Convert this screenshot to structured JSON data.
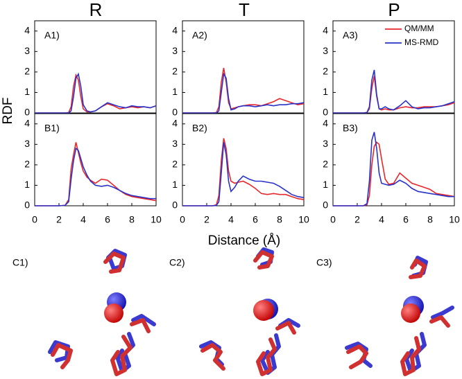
{
  "figure": {
    "column_titles": [
      "R",
      "T",
      "P"
    ],
    "y_label": "RDF",
    "x_label": "Distance (Å)",
    "image_labels": [
      "C1)",
      "C2)",
      "C3)"
    ]
  },
  "chart_data": [
    {
      "type": "line",
      "label": "A1)",
      "x": [
        0,
        1,
        2,
        2.5,
        2.8,
        3,
        3.2,
        3.4,
        3.6,
        3.8,
        4,
        4.3,
        4.6,
        5,
        5.5,
        6,
        6.5,
        7,
        7.5,
        8,
        8.5,
        9,
        9.5,
        10
      ],
      "xlim": [
        0,
        10
      ],
      "ylim": [
        0,
        4.5
      ],
      "yticks": [
        0,
        1,
        2,
        3,
        4
      ],
      "series": [
        {
          "color": "#e8262a",
          "values": [
            0,
            0,
            0,
            0,
            0.02,
            0.3,
            1.3,
            1.85,
            1.6,
            0.8,
            0.2,
            0.05,
            0.05,
            0.1,
            0.3,
            0.45,
            0.35,
            0.2,
            0.25,
            0.3,
            0.25,
            0.3,
            0.25,
            0.35
          ]
        },
        {
          "color": "#2832c8",
          "values": [
            0,
            0,
            0,
            0,
            0,
            0.1,
            0.8,
            1.7,
            1.9,
            1.3,
            0.4,
            0.1,
            0.05,
            0.1,
            0.3,
            0.5,
            0.4,
            0.3,
            0.25,
            0.35,
            0.3,
            0.3,
            0.25,
            0.35
          ]
        }
      ]
    },
    {
      "type": "line",
      "label": "A2)",
      "x": [
        0,
        1,
        2,
        2.5,
        2.8,
        3,
        3.2,
        3.4,
        3.6,
        3.8,
        4,
        4.3,
        4.6,
        5,
        5.5,
        6,
        6.5,
        7,
        7.5,
        8,
        8.5,
        9,
        9.5,
        10
      ],
      "xlim": [
        0,
        10
      ],
      "ylim": [
        0,
        4.5
      ],
      "yticks": [
        0,
        1,
        2,
        3,
        4
      ],
      "series": [
        {
          "color": "#e8262a",
          "values": [
            0,
            0,
            0,
            0,
            0.02,
            0.3,
            1.5,
            2.2,
            1.5,
            0.5,
            0.2,
            0.25,
            0.3,
            0.35,
            0.4,
            0.4,
            0.35,
            0.45,
            0.55,
            0.7,
            0.6,
            0.5,
            0.4,
            0.45
          ]
        },
        {
          "color": "#2832c8",
          "values": [
            0,
            0,
            0,
            0,
            0,
            0.1,
            1.0,
            1.9,
            1.7,
            0.7,
            0.15,
            0.2,
            0.3,
            0.35,
            0.35,
            0.3,
            0.35,
            0.4,
            0.35,
            0.4,
            0.4,
            0.45,
            0.45,
            0.5
          ]
        }
      ]
    },
    {
      "type": "line",
      "label": "A3)",
      "legend": "upper right",
      "x": [
        0,
        1,
        2,
        2.5,
        2.8,
        3,
        3.2,
        3.4,
        3.6,
        3.8,
        4,
        4.3,
        4.6,
        5,
        5.5,
        6,
        6.5,
        7,
        7.5,
        8,
        8.5,
        9,
        9.5,
        10
      ],
      "xlim": [
        0,
        10
      ],
      "ylim": [
        0,
        4.5
      ],
      "yticks": [
        0,
        1,
        2,
        3,
        4
      ],
      "series": [
        {
          "name": "QM/MM",
          "color": "#e8262a",
          "values": [
            0,
            0,
            0,
            0,
            0.02,
            0.2,
            1.2,
            1.8,
            0.8,
            0.2,
            0.15,
            0.2,
            0.15,
            0.15,
            0.25,
            0.3,
            0.25,
            0.25,
            0.3,
            0.3,
            0.3,
            0.35,
            0.4,
            0.5
          ]
        },
        {
          "name": "MS-RMD",
          "color": "#2832c8",
          "values": [
            0,
            0,
            0,
            0,
            0.02,
            0.3,
            1.6,
            2.1,
            0.9,
            0.2,
            0.2,
            0.3,
            0.2,
            0.15,
            0.35,
            0.6,
            0.3,
            0.2,
            0.25,
            0.25,
            0.3,
            0.35,
            0.45,
            0.55
          ]
        }
      ]
    },
    {
      "type": "line",
      "label": "B1)",
      "x": [
        0,
        1,
        2,
        2.5,
        2.8,
        3,
        3.2,
        3.4,
        3.6,
        3.8,
        4,
        4.3,
        4.6,
        5,
        5.5,
        6,
        6.5,
        7,
        7.5,
        8,
        8.5,
        9,
        9.5,
        10
      ],
      "xlim": [
        0,
        10
      ],
      "ylim": [
        0,
        4.5
      ],
      "yticks": [
        0,
        1,
        2,
        3,
        4
      ],
      "xticks": [
        0,
        2,
        4,
        6,
        8,
        10
      ],
      "series": [
        {
          "color": "#e8262a",
          "values": [
            0,
            0,
            0,
            0.02,
            0.3,
            1.8,
            2.5,
            3.1,
            2.6,
            2.1,
            1.7,
            1.4,
            1.25,
            1.1,
            1.3,
            1.25,
            1.0,
            0.75,
            0.55,
            0.45,
            0.4,
            0.35,
            0.3,
            0.25
          ]
        },
        {
          "color": "#2832c8",
          "values": [
            0,
            0,
            0,
            0.02,
            0.2,
            1.3,
            2.2,
            2.8,
            2.7,
            2.3,
            1.9,
            1.5,
            1.2,
            1.0,
            0.95,
            1.0,
            0.9,
            0.75,
            0.6,
            0.5,
            0.45,
            0.4,
            0.35,
            0.35
          ]
        }
      ]
    },
    {
      "type": "line",
      "label": "B2)",
      "x": [
        0,
        1,
        2,
        2.5,
        2.8,
        3,
        3.2,
        3.4,
        3.6,
        3.8,
        4,
        4.3,
        4.6,
        5,
        5.5,
        6,
        6.5,
        7,
        7.5,
        8,
        8.5,
        9,
        9.5,
        10
      ],
      "xlim": [
        0,
        10
      ],
      "ylim": [
        0,
        4.5
      ],
      "yticks": [
        0,
        1,
        2,
        3,
        4
      ],
      "xticks": [
        0,
        2,
        4,
        6,
        8,
        10
      ],
      "series": [
        {
          "color": "#e8262a",
          "values": [
            0,
            0,
            0,
            0,
            0.05,
            0.5,
            2.2,
            3.3,
            2.8,
            1.7,
            1.2,
            1.1,
            1.15,
            1.2,
            1.05,
            0.85,
            0.6,
            0.55,
            0.6,
            0.55,
            0.55,
            0.45,
            0.35,
            0.3
          ]
        },
        {
          "color": "#2832c8",
          "values": [
            0,
            0,
            0,
            0,
            0.02,
            0.2,
            1.6,
            3.1,
            2.5,
            1.2,
            0.7,
            0.9,
            1.2,
            1.45,
            1.3,
            1.2,
            1.2,
            1.15,
            1.1,
            0.95,
            0.75,
            0.55,
            0.45,
            0.4
          ]
        }
      ]
    },
    {
      "type": "line",
      "label": "B3)",
      "x": [
        0,
        1,
        2,
        2.5,
        2.8,
        3,
        3.2,
        3.4,
        3.6,
        3.8,
        4,
        4.3,
        4.6,
        5,
        5.5,
        6,
        6.5,
        7,
        7.5,
        8,
        8.5,
        9,
        9.5,
        10
      ],
      "xlim": [
        0,
        10
      ],
      "ylim": [
        0,
        4.5
      ],
      "yticks": [
        0,
        1,
        2,
        3,
        4
      ],
      "xticks": [
        0,
        2,
        4,
        6,
        8,
        10
      ],
      "series": [
        {
          "color": "#e8262a",
          "values": [
            0,
            0,
            0,
            0,
            0.05,
            0.5,
            2.0,
            2.9,
            3.1,
            3.0,
            2.3,
            1.3,
            1.05,
            1.1,
            1.6,
            1.35,
            1.1,
            1.0,
            0.9,
            0.8,
            0.6,
            0.55,
            0.5,
            0.45
          ]
        },
        {
          "color": "#2832c8",
          "values": [
            0,
            0,
            0,
            0,
            0.1,
            1.2,
            3.2,
            3.6,
            2.8,
            1.6,
            1.1,
            1.05,
            1.0,
            1.05,
            1.25,
            1.1,
            0.85,
            0.7,
            0.65,
            0.6,
            0.55,
            0.5,
            0.45,
            0.45
          ]
        }
      ]
    }
  ]
}
